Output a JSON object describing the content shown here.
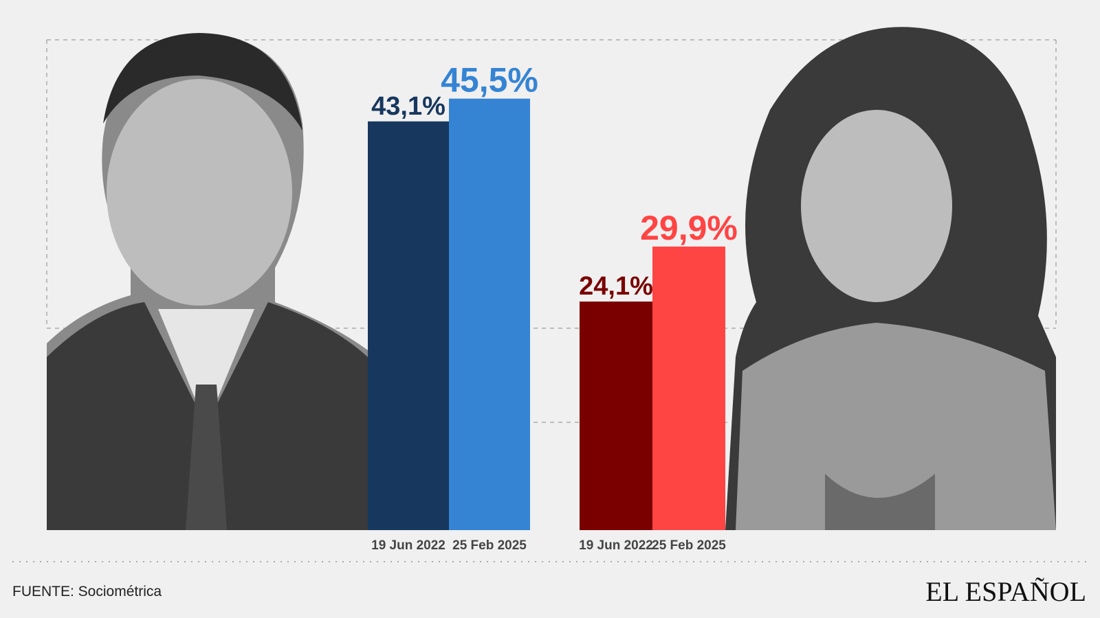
{
  "chart_data": {
    "type": "bar",
    "categories": [
      "19 Jun 2022",
      "25 Feb 2025"
    ],
    "series": [
      {
        "values": [
          43.1,
          45.5
        ],
        "value_labels": [
          "43,1%",
          "45,5%"
        ],
        "colors": [
          "#17375e",
          "#3584d4"
        ]
      },
      {
        "values": [
          24.1,
          29.9
        ],
        "value_labels": [
          "24,1%",
          "29,9%"
        ],
        "colors": [
          "#7a0000",
          "#ff4444"
        ]
      }
    ],
    "ylim": [
      0,
      51.7
    ],
    "source": "FUENTE: Sociométrica",
    "logo": "EL ESPAÑOL"
  }
}
